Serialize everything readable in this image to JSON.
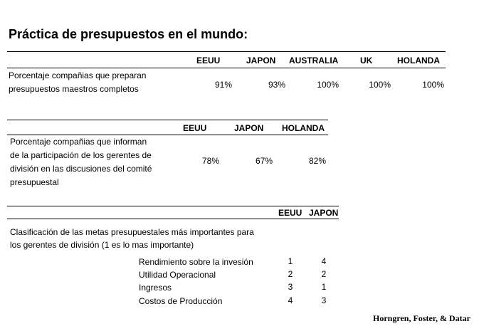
{
  "title": "Práctica de presupuestos en el mundo:",
  "table1": {
    "headers": [
      "EEUU",
      "JAPON",
      "AUSTRALIA",
      "UK",
      "HOLANDA"
    ],
    "row_label": [
      "Porcentaje compañias que preparan",
      "presupuestos maestros completos"
    ],
    "values": [
      "91%",
      "93%",
      "100%",
      "100%",
      "100%"
    ]
  },
  "table2": {
    "headers": [
      "EEUU",
      "JAPON",
      "HOLANDA"
    ],
    "row_label": [
      "Porcentaje compañias que informan",
      "de la participación de los gerentes de",
      "división en las discusiones del comité",
      "presupuestal"
    ],
    "values": [
      "78%",
      "67%",
      "82%"
    ]
  },
  "table3": {
    "headers": [
      "EEUU",
      "JAPON"
    ],
    "description": [
      "Clasificación de las metas presupuestales más importantes para",
      "los gerentes de división (1 es lo mas importante)"
    ],
    "rows": [
      {
        "label": "Rendimiento sobre la invesión",
        "eeuu": "1",
        "japon": "4"
      },
      {
        "label": "Utilidad Operacional",
        "eeuu": "2",
        "japon": "2"
      },
      {
        "label": "Ingresos",
        "eeuu": "3",
        "japon": "1"
      },
      {
        "label": "Costos de Producción",
        "eeuu": "4",
        "japon": "3"
      }
    ]
  },
  "credit": "Horngren, Foster, & Datar"
}
